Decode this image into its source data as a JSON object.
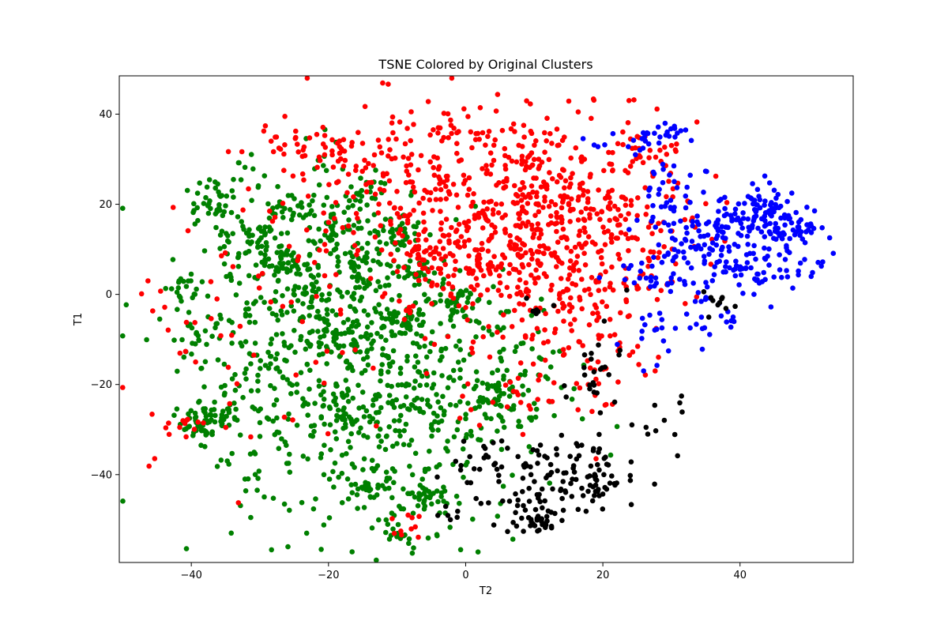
{
  "chart_data": {
    "type": "scatter",
    "title": "TSNE Colored by Original Clusters",
    "xlabel": "T2",
    "ylabel": "T1",
    "xlim": [
      -50.5,
      56.5
    ],
    "ylim": [
      -59.5,
      48.5
    ],
    "xticks": [
      -40,
      -20,
      0,
      20,
      40
    ],
    "yticks": [
      -40,
      -20,
      0,
      20,
      40
    ],
    "grid": false,
    "legend": "none",
    "series": [
      {
        "color": "#008000",
        "clusters": [
          {
            "cx": -37,
            "cy": 21,
            "sx": 1.6,
            "sy": 2.2,
            "n": 30
          },
          {
            "cx": -38,
            "cy": -28,
            "sx": 2.0,
            "sy": 2.0,
            "n": 70
          },
          {
            "cx": -41,
            "cy": 1,
            "sx": 1.6,
            "sy": 2.0,
            "n": 18
          },
          {
            "cx": -40,
            "cy": -11,
            "sx": 1.6,
            "sy": 1.6,
            "n": 12
          },
          {
            "cx": -31,
            "cy": 13,
            "sx": 2.2,
            "sy": 1.4,
            "n": 25
          },
          {
            "cx": -26,
            "cy": 19,
            "sx": 1.6,
            "sy": 1.4,
            "n": 18
          },
          {
            "cx": -25,
            "cy": 6,
            "sx": 2.2,
            "sy": 2.0,
            "n": 35
          },
          {
            "cx": -22,
            "cy": 0,
            "sx": 1.8,
            "sy": 1.6,
            "n": 20
          },
          {
            "cx": -19,
            "cy": -9,
            "sx": 2.4,
            "sy": 1.6,
            "n": 35
          },
          {
            "cx": -18,
            "cy": 14,
            "sx": 2.0,
            "sy": 1.8,
            "n": 20
          },
          {
            "cx": -17,
            "cy": 8,
            "sx": 2.2,
            "sy": 1.8,
            "n": 20
          },
          {
            "cx": -15,
            "cy": 22,
            "sx": 1.6,
            "sy": 1.4,
            "n": 15
          },
          {
            "cx": -14,
            "cy": 2,
            "sx": 2.2,
            "sy": 1.8,
            "n": 22
          },
          {
            "cx": -10,
            "cy": 14,
            "sx": 2.2,
            "sy": 1.8,
            "n": 30
          },
          {
            "cx": -10,
            "cy": -6,
            "sx": 2.2,
            "sy": 2.0,
            "n": 40
          },
          {
            "cx": -8,
            "cy": 5,
            "sx": 2.0,
            "sy": 1.8,
            "n": 25
          },
          {
            "cx": -2,
            "cy": -2,
            "sx": 2.2,
            "sy": 1.8,
            "n": 45
          },
          {
            "cx": -17,
            "cy": -28,
            "sx": 1.8,
            "sy": 2.0,
            "n": 25
          },
          {
            "cx": -5,
            "cy": -44,
            "sx": 2.0,
            "sy": 2.0,
            "n": 28
          },
          {
            "cx": -10,
            "cy": -52,
            "sx": 2.0,
            "sy": 1.8,
            "n": 22
          },
          {
            "cx": -14,
            "cy": -42,
            "sx": 2.0,
            "sy": 2.0,
            "n": 15
          },
          {
            "cx": 5,
            "cy": -21,
            "sx": 1.8,
            "sy": 1.8,
            "n": 15
          },
          {
            "cx": 7,
            "cy": -27,
            "sx": 1.8,
            "sy": 1.6,
            "n": 12
          },
          {
            "cx": -22,
            "cy": -20,
            "sx": 9.0,
            "sy": 16.0,
            "n": 300
          },
          {
            "cx": -8,
            "cy": -25,
            "sx": 7.0,
            "sy": 14.0,
            "n": 260
          },
          {
            "cx": 5,
            "cy": -20,
            "sx": 6.0,
            "sy": 10.0,
            "n": 90
          },
          {
            "cx": -30,
            "cy": 0,
            "sx": 6.0,
            "sy": 14.0,
            "n": 150
          },
          {
            "cx": -20,
            "cy": 18,
            "sx": 8.0,
            "sy": 8.0,
            "n": 90
          }
        ]
      },
      {
        "color": "#ff0000",
        "clusters": [
          {
            "cx": 8,
            "cy": 15,
            "sx": 11.0,
            "sy": 11.0,
            "n": 560
          },
          {
            "cx": 18,
            "cy": 10,
            "sx": 7.0,
            "sy": 14.0,
            "n": 180
          },
          {
            "cx": -5,
            "cy": 8,
            "sx": 3.5,
            "sy": 3.0,
            "n": 45
          },
          {
            "cx": -14,
            "cy": 25,
            "sx": 9.0,
            "sy": 9.0,
            "n": 80
          },
          {
            "cx": -25,
            "cy": 33,
            "sx": 3.0,
            "sy": 2.2,
            "n": 22
          },
          {
            "cx": -19,
            "cy": 32,
            "sx": 2.0,
            "sy": 2.0,
            "n": 20
          },
          {
            "cx": -20,
            "cy": 5,
            "sx": 13.0,
            "sy": 15.0,
            "n": 45
          },
          {
            "cx": -30,
            "cy": -15,
            "sx": 12.0,
            "sy": 12.0,
            "n": 30
          },
          {
            "cx": -41,
            "cy": -29,
            "sx": 1.5,
            "sy": 1.5,
            "n": 12
          },
          {
            "cx": -43,
            "cy": -6,
            "sx": 3.0,
            "sy": 5.0,
            "n": 10
          },
          {
            "cx": 10,
            "cy": -15,
            "sx": 10.0,
            "sy": 8.0,
            "n": 40
          },
          {
            "cx": -8,
            "cy": -52,
            "sx": 2.0,
            "sy": 1.5,
            "n": 10
          },
          {
            "cx": 25,
            "cy": 30,
            "sx": 3.0,
            "sy": 3.0,
            "n": 18
          },
          {
            "cx": 3,
            "cy": 34,
            "sx": 9.0,
            "sy": 3.0,
            "n": 55
          },
          {
            "cx": 20,
            "cy": -20,
            "sx": 3.0,
            "sy": 2.5,
            "n": 12
          }
        ]
      },
      {
        "color": "#0000ff",
        "clusters": [
          {
            "cx": 44,
            "cy": 18,
            "sx": 3.0,
            "sy": 3.5,
            "n": 90
          },
          {
            "cx": 36,
            "cy": 13,
            "sx": 3.5,
            "sy": 3.5,
            "n": 60
          },
          {
            "cx": 38,
            "cy": 5,
            "sx": 5.0,
            "sy": 5.0,
            "n": 60
          },
          {
            "cx": 30,
            "cy": 20,
            "sx": 3.5,
            "sy": 5.0,
            "n": 50
          },
          {
            "cx": 29,
            "cy": 36,
            "sx": 2.0,
            "sy": 1.5,
            "n": 20
          },
          {
            "cx": 27,
            "cy": 5,
            "sx": 3.0,
            "sy": 3.0,
            "n": 25
          },
          {
            "cx": 28,
            "cy": -8,
            "sx": 3.0,
            "sy": 3.0,
            "n": 18
          },
          {
            "cx": 44,
            "cy": 8,
            "sx": 4.0,
            "sy": 5.0,
            "n": 50
          },
          {
            "cx": 49,
            "cy": 15,
            "sx": 1.5,
            "sy": 2.0,
            "n": 15
          },
          {
            "cx": 22,
            "cy": 32,
            "sx": 4.0,
            "sy": 3.0,
            "n": 15
          },
          {
            "cx": 35,
            "cy": -5,
            "sx": 3.0,
            "sy": 3.0,
            "n": 10
          },
          {
            "cx": 51.5,
            "cy": 7,
            "sx": 0.4,
            "sy": 0.8,
            "n": 3
          }
        ]
      },
      {
        "color": "#000000",
        "clusters": [
          {
            "cx": 19,
            "cy": -42,
            "sx": 3.0,
            "sy": 2.5,
            "n": 40
          },
          {
            "cx": 10,
            "cy": -45,
            "sx": 4.0,
            "sy": 3.0,
            "n": 50
          },
          {
            "cx": 10,
            "cy": -51,
            "sx": 2.0,
            "sy": 1.0,
            "n": 25
          },
          {
            "cx": 15,
            "cy": -36,
            "sx": 4.0,
            "sy": 3.0,
            "n": 35
          },
          {
            "cx": 3,
            "cy": -38,
            "sx": 3.0,
            "sy": 3.0,
            "n": 25
          },
          {
            "cx": 19,
            "cy": -15,
            "sx": 2.0,
            "sy": 6.0,
            "n": 25
          },
          {
            "cx": 27,
            "cy": -32,
            "sx": 2.0,
            "sy": 4.0,
            "n": 8
          },
          {
            "cx": 37,
            "cy": -1,
            "sx": 1.5,
            "sy": 1.5,
            "n": 10
          },
          {
            "cx": 31,
            "cy": -24,
            "sx": 0.4,
            "sy": 0.8,
            "n": 3
          },
          {
            "cx": 10,
            "cy": -4,
            "sx": 2.0,
            "sy": 2.0,
            "n": 6
          },
          {
            "cx": -2,
            "cy": -48,
            "sx": 1.0,
            "sy": 1.5,
            "n": 6
          }
        ]
      }
    ]
  }
}
